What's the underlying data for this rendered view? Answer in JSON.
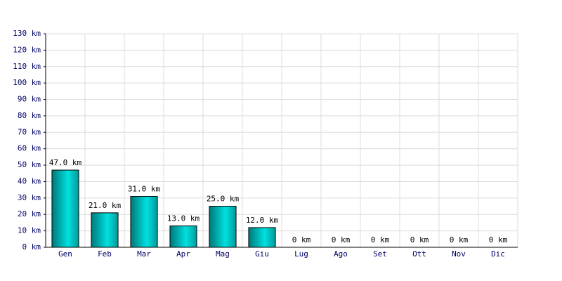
{
  "chart_data": {
    "type": "bar",
    "categories": [
      "Gen",
      "Feb",
      "Mar",
      "Apr",
      "Mag",
      "Giu",
      "Lug",
      "Ago",
      "Set",
      "Ott",
      "Nov",
      "Dic"
    ],
    "values": [
      47,
      21,
      31,
      13,
      25,
      12,
      0,
      0,
      0,
      0,
      0,
      0
    ],
    "value_labels": [
      "47.0 km",
      "21.0 km",
      "31.0 km",
      "13.0 km",
      "25.0 km",
      "12.0 km",
      "0 km",
      "0 km",
      "0 km",
      "0 km",
      "0 km",
      "0 km"
    ],
    "color": "#00e0e0",
    "ylim": [
      0,
      130
    ],
    "yticks": [
      {
        "value": 0,
        "label": "0 km"
      },
      {
        "value": 10,
        "label": "10 km"
      },
      {
        "value": 20,
        "label": "20 km"
      },
      {
        "value": 30,
        "label": "30 km"
      },
      {
        "value": 40,
        "label": "40 km"
      },
      {
        "value": 50,
        "label": "50 km"
      },
      {
        "value": 60,
        "label": "60 km"
      },
      {
        "value": 70,
        "label": "70 km"
      },
      {
        "value": 80,
        "label": "80 km"
      },
      {
        "value": 90,
        "label": "90 km"
      },
      {
        "value": 100,
        "label": "100 km"
      },
      {
        "value": 110,
        "label": "110 km"
      },
      {
        "value": 120,
        "label": "120 km"
      },
      {
        "value": 130,
        "label": "130 km"
      }
    ],
    "grid": true
  }
}
